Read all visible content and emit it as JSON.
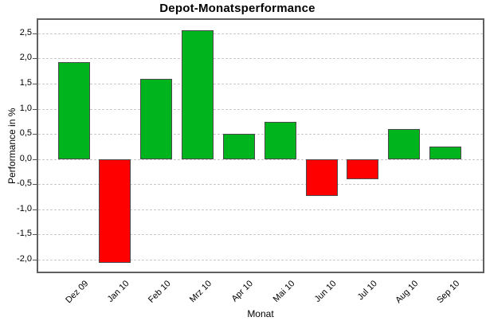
{
  "chart_data": {
    "type": "bar",
    "title": "Depot-Monatsperformance",
    "xlabel": "Monat",
    "ylabel": "Performance in %",
    "categories": [
      "Dez 09",
      "Jan 10",
      "Feb 10",
      "Mrz 10",
      "Apr 10",
      "Mai 10",
      "Jun 10",
      "Jul 10",
      "Aug 10",
      "Sep 10"
    ],
    "values": [
      1.93,
      -2.07,
      1.59,
      2.57,
      0.5,
      0.74,
      -0.73,
      -0.4,
      0.6,
      0.25
    ],
    "ylim": [
      -2.27,
      2.8
    ],
    "yticks": [
      2.5,
      2.0,
      1.5,
      1.0,
      0.5,
      0.0,
      -0.5,
      -1.0,
      -1.5,
      -2.0
    ],
    "ytick_labels": [
      "2,5",
      "2,0",
      "1,5",
      "1,0",
      "0,5",
      "0,0",
      "-0,5",
      "-1,0",
      "-1,5",
      "-2,0"
    ],
    "grid": true,
    "legend": "none",
    "colors": {
      "positive": "#00b41e",
      "negative": "#ff0000",
      "bar_border": "#4a4a4a",
      "grid": "#c8c8c8",
      "plot_border": "#606060",
      "background": "#ffffff"
    }
  }
}
